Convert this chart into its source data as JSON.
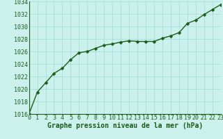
{
  "x": [
    0,
    1,
    2,
    3,
    4,
    5,
    6,
    7,
    8,
    9,
    10,
    11,
    12,
    13,
    14,
    15,
    16,
    17,
    18,
    19,
    20,
    21,
    22,
    23
  ],
  "y": [
    1016.0,
    1019.5,
    1021.0,
    1022.5,
    1023.3,
    1024.7,
    1025.8,
    1026.0,
    1026.5,
    1027.0,
    1027.2,
    1027.5,
    1027.7,
    1027.6,
    1027.6,
    1027.6,
    1028.1,
    1028.5,
    1029.0,
    1030.5,
    1031.0,
    1031.9,
    1032.7,
    1033.5
  ],
  "xlim": [
    0,
    23
  ],
  "ylim": [
    1016,
    1034
  ],
  "yticks": [
    1016,
    1018,
    1020,
    1022,
    1024,
    1026,
    1028,
    1030,
    1032,
    1034
  ],
  "xticks": [
    0,
    1,
    2,
    3,
    4,
    5,
    6,
    7,
    8,
    9,
    10,
    11,
    12,
    13,
    14,
    15,
    16,
    17,
    18,
    19,
    20,
    21,
    22,
    23
  ],
  "xlabel": "Graphe pression niveau de la mer (hPa)",
  "line_color": "#1a5c1a",
  "marker": "D",
  "marker_size": 2.5,
  "bg_color": "#ccf0eb",
  "grid_color": "#99ddd6",
  "xlabel_fontsize": 7,
  "tick_fontsize": 6,
  "tick_color": "#1a5c1a",
  "xlabel_color": "#1a5c1a",
  "xlabel_fontweight": "bold",
  "line_width": 1.0,
  "spine_color": "#1a5c1a"
}
